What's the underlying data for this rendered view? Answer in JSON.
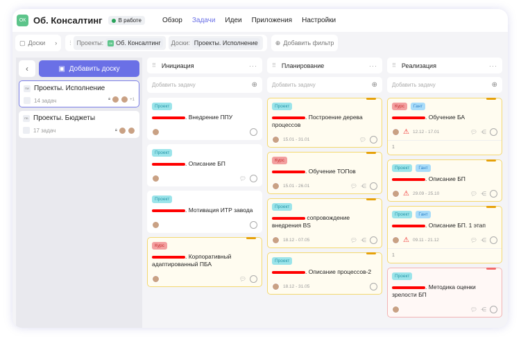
{
  "header": {
    "logo": "ОК",
    "project": "Об. Консалтинг",
    "status": "В работе",
    "nav": [
      "Обзор",
      "Задачи",
      "Идеи",
      "Приложения",
      "Настройки"
    ],
    "active_nav": 1
  },
  "filters": {
    "boards_label": "Доски",
    "projects_label": "Проекты:",
    "project_chip_logo": "ОК",
    "project_chip": "Об. Консалтинг",
    "board_label": "Доски:",
    "board_chip": "Проекты. Исполнение",
    "add_filter": "Добавить фильтр"
  },
  "sidebar": {
    "add_board": "Добавить доску",
    "boards": [
      {
        "abbr": "ПИ",
        "name": "Проекты. Исполнение",
        "count": "14 задач",
        "extra": "+1",
        "selected": true
      },
      {
        "abbr": "ПБ",
        "name": "Проекты. Бюджеты",
        "count": "17 задач",
        "extra": "",
        "selected": false
      }
    ]
  },
  "add_task": "Добавить задачу",
  "columns": [
    {
      "title": "Инициация",
      "cards": [
        {
          "tags": [
            "Проект"
          ],
          "title": ". Внедрение ППУ",
          "dates": "",
          "warn": false,
          "icons": [
            "circle"
          ],
          "style": ""
        },
        {
          "tags": [
            "Проект"
          ],
          "title": ". Описание БП",
          "dates": "",
          "warn": false,
          "icons": [
            "comment",
            "circle"
          ],
          "style": ""
        },
        {
          "tags": [
            "Проект"
          ],
          "title": ". Мотивация ИТР завода",
          "dates": "",
          "warn": false,
          "icons": [
            "circle"
          ],
          "style": ""
        },
        {
          "tags": [
            "Курс"
          ],
          "title": ". Корпоративный адаптированный ПБА",
          "dates": "",
          "warn": false,
          "icons": [
            "comment",
            "circle"
          ],
          "style": "y"
        }
      ]
    },
    {
      "title": "Планирование",
      "cards": [
        {
          "tags": [
            "Проект"
          ],
          "title": ". Построение дерева процессов",
          "dates": "15.01 - 31.01",
          "warn": false,
          "icons": [
            "comment",
            "circle"
          ],
          "style": "y"
        },
        {
          "tags": [
            "Курс"
          ],
          "title": ". Обучение ТОПов",
          "dates": "15.01 - 26.01",
          "warn": false,
          "icons": [
            "comment",
            "share",
            "circle"
          ],
          "style": "y"
        },
        {
          "tags": [
            "Проект"
          ],
          "title": " сопровождение внедрения BS",
          "dates": "18.12 - 07.05",
          "warn": false,
          "icons": [
            "comment",
            "share",
            "circle"
          ],
          "style": "y"
        },
        {
          "tags": [
            "Проект"
          ],
          "title": ". Описание процессов-2",
          "dates": "18.12 - 31.05",
          "warn": false,
          "icons": [
            "circle"
          ],
          "style": "y"
        }
      ]
    },
    {
      "title": "Реализация",
      "cards": [
        {
          "tags": [
            "Курс",
            "Гант"
          ],
          "title": ". Обучение БА",
          "dates": "12.12 - 17.01",
          "warn": true,
          "icons": [
            "comment",
            "share",
            "circle"
          ],
          "style": "y",
          "footer": "1"
        },
        {
          "tags": [
            "Проект",
            "Гант"
          ],
          "title": ". Описание БП",
          "dates": "29.09 - 25.10",
          "warn": true,
          "icons": [
            "comment",
            "share",
            "circle"
          ],
          "style": "y"
        },
        {
          "tags": [
            "Проект",
            "Гант"
          ],
          "title": ". Описание БП. 1 этап",
          "dates": "09.11 - 21.12",
          "warn": true,
          "icons": [
            "comment",
            "share",
            "circle"
          ],
          "style": "y",
          "footer": "1"
        },
        {
          "tags": [
            "Проект"
          ],
          "title": ". Методика оценки зрелости БП",
          "dates": "",
          "warn": false,
          "icons": [
            "comment",
            "share",
            "circle"
          ],
          "style": "r"
        }
      ]
    }
  ]
}
